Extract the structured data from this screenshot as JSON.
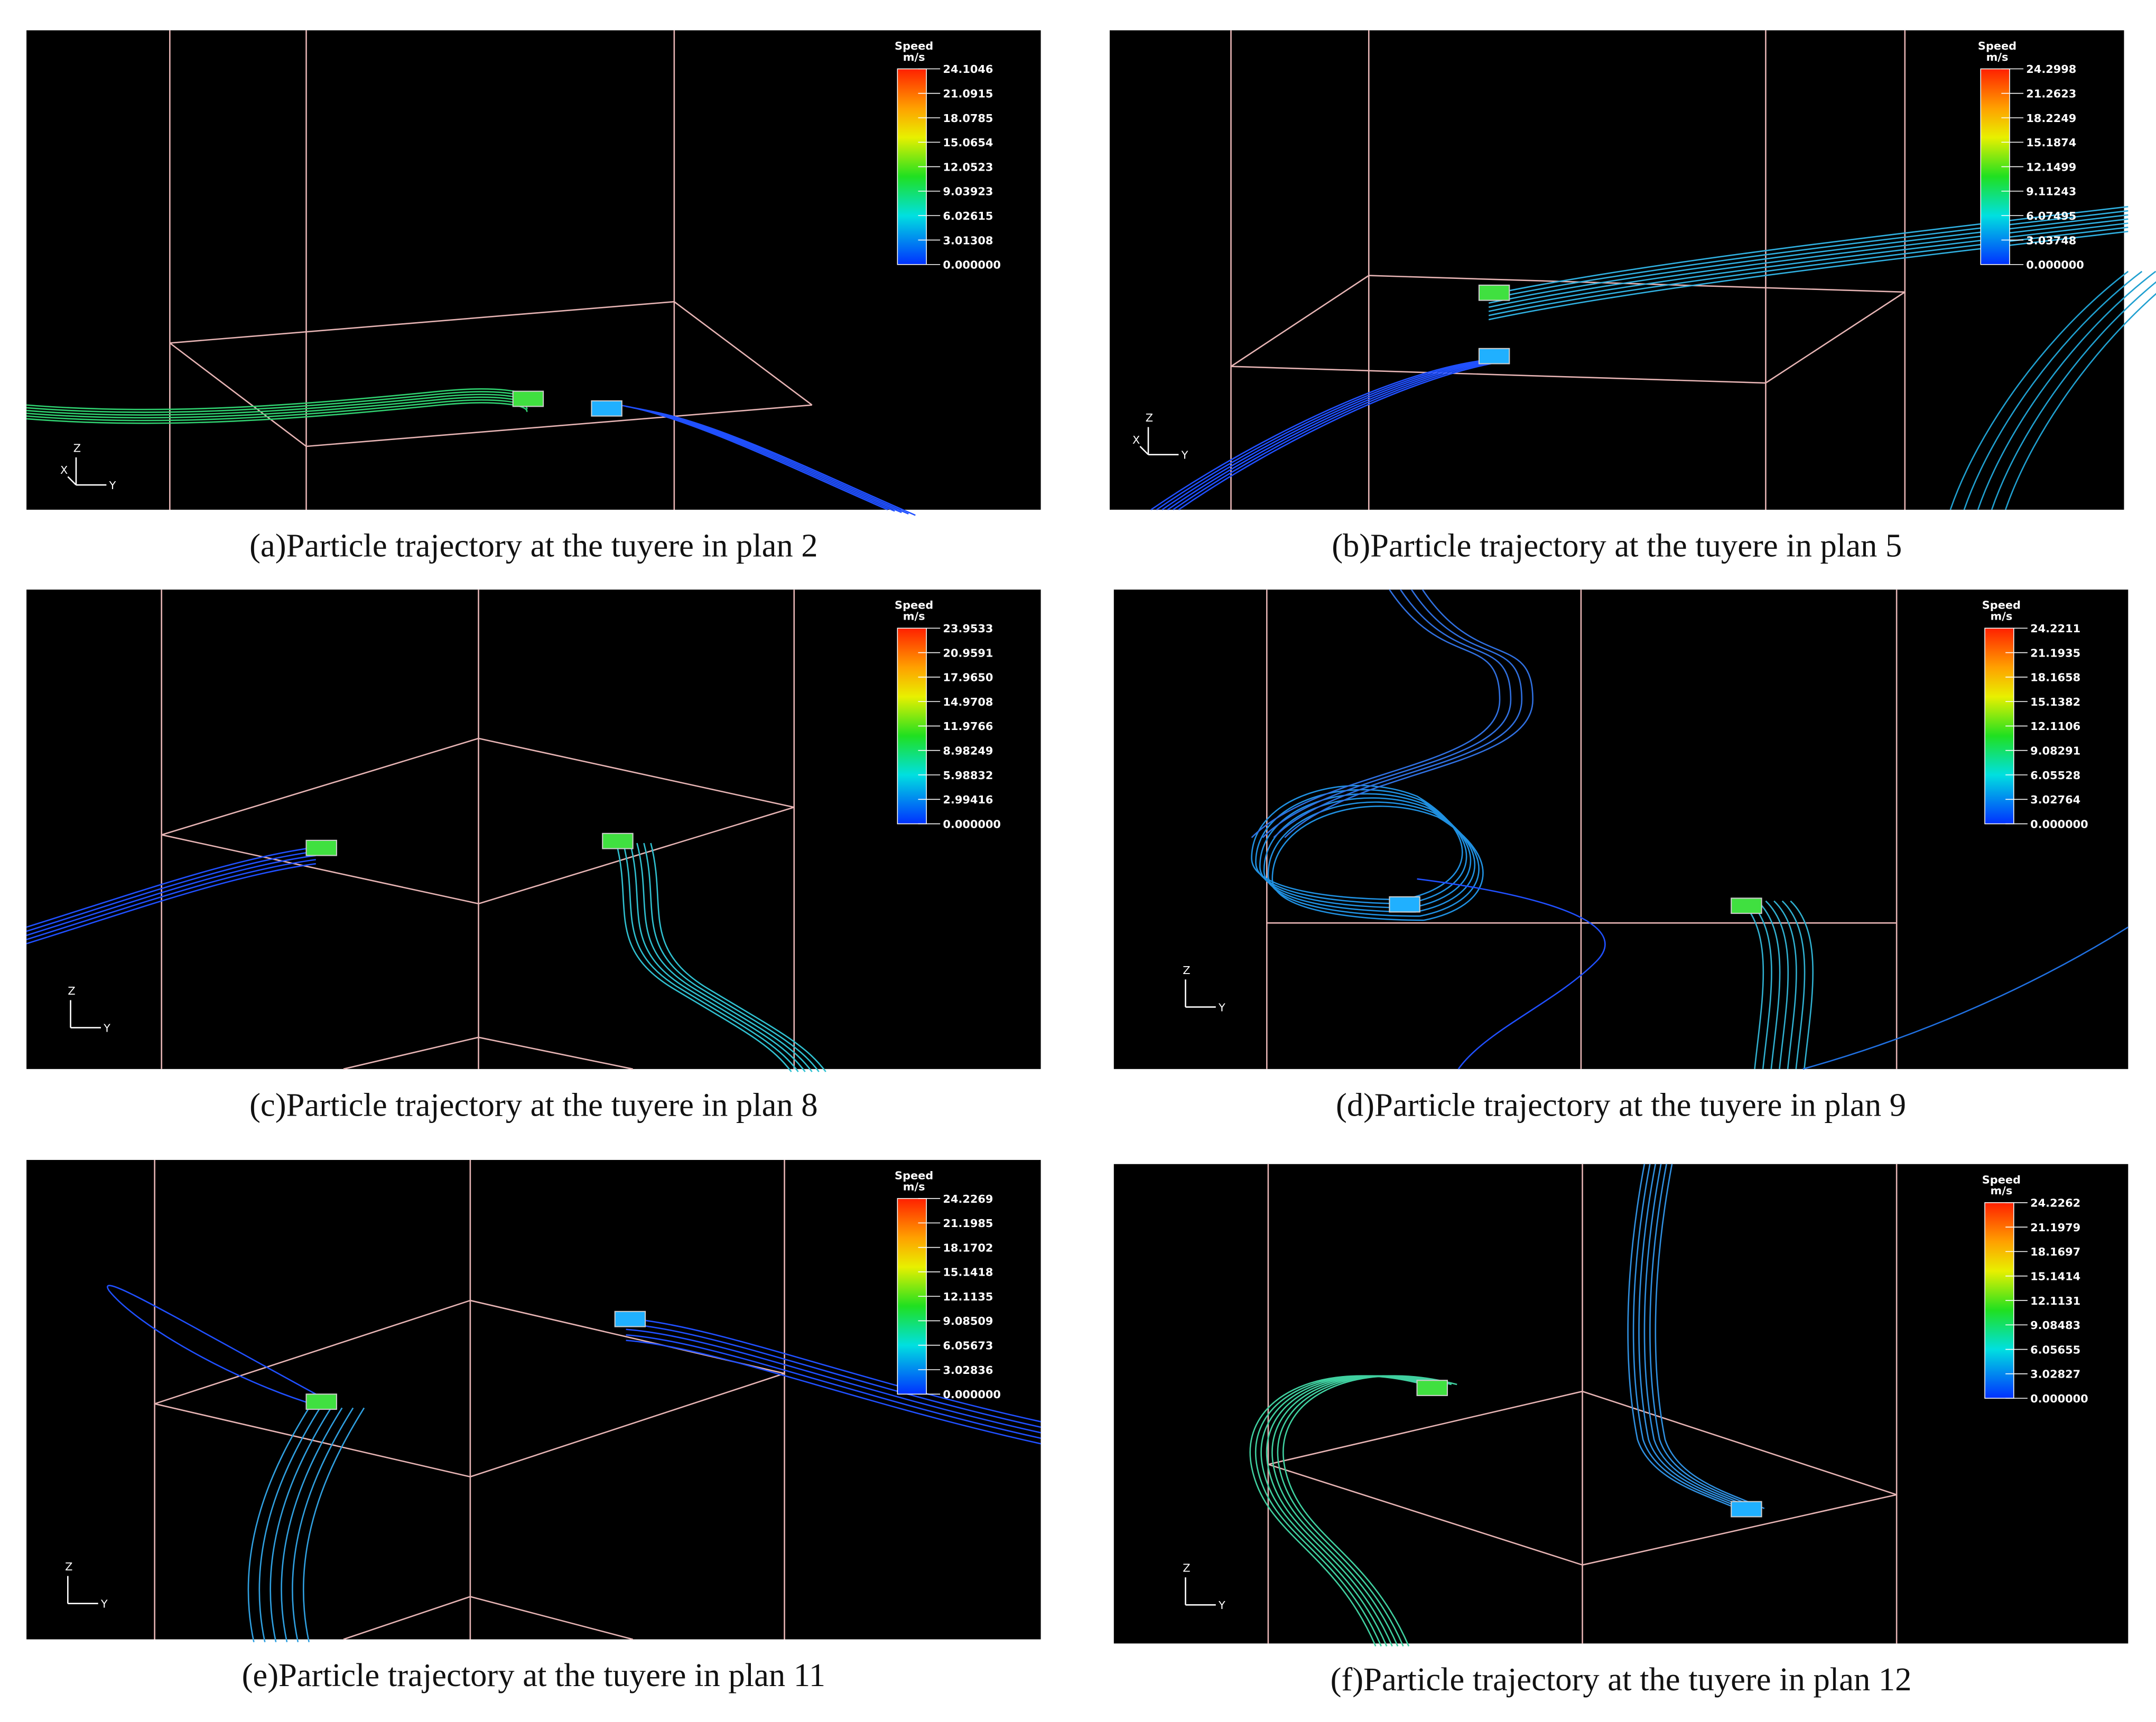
{
  "panels": [
    {
      "caption": "(a)Particle trajectory at the tuyere in plan 2",
      "legend": {
        "title": "Speed",
        "unit": "m/s",
        "labels": [
          "24.1046",
          "21.0915",
          "18.0785",
          "15.0654",
          "12.0523",
          "9.03923",
          "6.02615",
          "3.01308",
          "0.000000"
        ]
      },
      "triad": [
        "Z",
        "Y",
        "X"
      ]
    },
    {
      "caption": "(b)Particle trajectory at the tuyere in plan 5",
      "legend": {
        "title": "Speed",
        "unit": "m/s",
        "labels": [
          "24.2998",
          "21.2623",
          "18.2249",
          "15.1874",
          "12.1499",
          "9.11243",
          "6.07495",
          "3.03748",
          "0.000000"
        ]
      },
      "triad": [
        "Z",
        "Y",
        "X"
      ]
    },
    {
      "caption": "(c)Particle trajectory at the tuyere in plan 8",
      "legend": {
        "title": "Speed",
        "unit": "m/s",
        "labels": [
          "23.9533",
          "20.9591",
          "17.9650",
          "14.9708",
          "11.9766",
          "8.98249",
          "5.98832",
          "2.99416",
          "0.000000"
        ]
      },
      "triad": [
        "Z",
        "Y"
      ]
    },
    {
      "caption": "(d)Particle trajectory at the tuyere in plan 9",
      "legend": {
        "title": "Speed",
        "unit": "m/s",
        "labels": [
          "24.2211",
          "21.1935",
          "18.1658",
          "15.1382",
          "12.1106",
          "9.08291",
          "6.05528",
          "3.02764",
          "0.000000"
        ]
      },
      "triad": [
        "Z",
        "Y"
      ]
    },
    {
      "caption": "(e)Particle trajectory at the tuyere in plan 11",
      "legend": {
        "title": "Speed",
        "unit": "m/s",
        "labels": [
          "24.2269",
          "21.1985",
          "18.1702",
          "15.1418",
          "12.1135",
          "9.08509",
          "6.05673",
          "3.02836",
          "0.000000"
        ]
      },
      "triad": [
        "Z",
        "Y"
      ]
    },
    {
      "caption": "(f)Particle trajectory at the tuyere in plan 12",
      "legend": {
        "title": "Speed",
        "unit": "m/s",
        "labels": [
          "24.2262",
          "21.1979",
          "18.1697",
          "15.1414",
          "12.1131",
          "9.08483",
          "6.05655",
          "3.02827",
          "0.000000"
        ]
      },
      "triad": [
        "Z",
        "Y"
      ]
    }
  ]
}
